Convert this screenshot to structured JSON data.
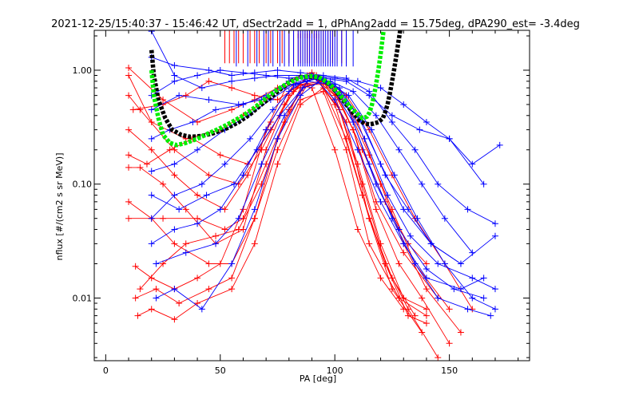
{
  "chart_data": {
    "type": "line",
    "title": "2021-12-25/15:40:37 - 15:46:42 UT, dSectr2add = 1, dPhAng2add = 15.75deg, dPA290_est= -3.4deg",
    "xlabel": "PA [deg]",
    "ylabel": "nflux [#/(cm2 s sr MeV)]",
    "xlim": [
      -5,
      185
    ],
    "ylim_log10": [
      -2.55,
      0.35
    ],
    "y_scale": "log",
    "x_ticks": [
      0,
      50,
      100,
      150
    ],
    "x_tick_labels": [
      "0",
      "50",
      "100",
      "150"
    ],
    "y_ticks": [
      0.01,
      0.1,
      1.0
    ],
    "y_tick_labels": [
      "0.01",
      "0.10",
      "1.00"
    ],
    "grid": false,
    "colors": {
      "red": "#ff0000",
      "blue": "#0000ff",
      "green": "#00ee00",
      "black": "#000000"
    },
    "red_markers_x": [
      52,
      54,
      56,
      58,
      60,
      63,
      65,
      67,
      70,
      72,
      75,
      77,
      80,
      82,
      84,
      85,
      86,
      87,
      88,
      89,
      90,
      91,
      92,
      93,
      94,
      95,
      97,
      99,
      101,
      103,
      105
    ],
    "blue_markers_x": [
      57,
      62,
      66,
      69,
      71,
      73,
      76,
      78,
      80,
      82,
      84,
      85,
      86,
      87,
      88,
      89,
      90,
      91,
      92,
      93,
      94,
      95,
      96,
      97,
      98,
      99,
      100,
      101,
      103,
      105,
      108
    ],
    "series": [
      {
        "color": "red",
        "x": [
          10,
          25,
          40,
          55,
          65,
          75,
          85,
          95,
          105,
          115,
          125,
          135,
          148,
          160
        ],
        "y": [
          1.05,
          0.55,
          0.35,
          0.45,
          0.55,
          0.7,
          0.9,
          0.85,
          0.6,
          0.3,
          0.12,
          0.05,
          0.02,
          0.008
        ]
      },
      {
        "color": "red",
        "x": [
          10,
          20,
          35,
          50,
          60,
          70,
          80,
          90,
          100,
          110,
          120,
          130,
          140,
          155
        ],
        "y": [
          0.9,
          0.35,
          0.25,
          0.3,
          0.4,
          0.55,
          0.8,
          0.95,
          0.7,
          0.35,
          0.1,
          0.03,
          0.012,
          0.005
        ]
      },
      {
        "color": "red",
        "x": [
          10,
          15,
          30,
          45,
          58,
          68,
          78,
          88,
          98,
          108,
          118,
          128,
          138,
          150
        ],
        "y": [
          0.6,
          0.45,
          0.2,
          0.12,
          0.1,
          0.2,
          0.5,
          0.9,
          0.75,
          0.3,
          0.06,
          0.02,
          0.01,
          0.004
        ]
      },
      {
        "color": "red",
        "x": [
          10,
          20,
          30,
          40,
          52,
          62,
          72,
          82,
          92,
          102,
          112,
          122,
          132,
          145
        ],
        "y": [
          0.3,
          0.2,
          0.12,
          0.08,
          0.06,
          0.12,
          0.35,
          0.75,
          0.85,
          0.45,
          0.1,
          0.02,
          0.008,
          0.003
        ]
      },
      {
        "color": "red",
        "x": [
          10,
          15,
          25,
          35,
          48,
          60,
          70,
          80,
          90,
          100,
          112,
          122,
          132,
          140
        ],
        "y": [
          0.14,
          0.14,
          0.1,
          0.06,
          0.03,
          0.04,
          0.2,
          0.6,
          0.95,
          0.5,
          0.08,
          0.02,
          0.007,
          0.006
        ]
      },
      {
        "color": "red",
        "x": [
          10,
          20,
          30,
          45,
          55,
          65,
          75,
          85,
          95,
          105,
          115,
          125,
          135
        ],
        "y": [
          0.07,
          0.05,
          0.03,
          0.02,
          0.02,
          0.05,
          0.25,
          0.7,
          0.8,
          0.35,
          0.05,
          0.015,
          0.007
        ]
      },
      {
        "color": "red",
        "x": [
          10,
          25,
          40,
          52,
          60,
          70,
          80,
          90,
          100,
          110,
          120,
          130,
          140
        ],
        "y": [
          0.05,
          0.05,
          0.05,
          0.04,
          0.05,
          0.15,
          0.45,
          0.9,
          0.6,
          0.15,
          0.03,
          0.01,
          0.008
        ]
      },
      {
        "color": "red",
        "x": [
          13,
          20,
          30,
          40,
          50,
          60,
          70,
          80,
          90,
          100,
          110,
          120,
          130
        ],
        "y": [
          0.019,
          0.015,
          0.012,
          0.015,
          0.02,
          0.06,
          0.3,
          0.8,
          0.7,
          0.2,
          0.04,
          0.015,
          0.008
        ]
      },
      {
        "color": "red",
        "x": [
          13,
          22,
          32,
          45,
          55,
          65,
          75,
          85,
          95,
          105,
          115,
          128,
          140
        ],
        "y": [
          0.01,
          0.012,
          0.009,
          0.012,
          0.015,
          0.05,
          0.2,
          0.55,
          0.65,
          0.2,
          0.03,
          0.01,
          0.007
        ]
      },
      {
        "color": "red",
        "x": [
          14,
          20,
          30,
          40,
          55,
          65,
          75,
          85,
          95,
          105,
          115,
          125,
          138
        ],
        "y": [
          0.007,
          0.008,
          0.0065,
          0.009,
          0.012,
          0.03,
          0.15,
          0.5,
          0.7,
          0.25,
          0.05,
          0.012,
          0.005
        ]
      },
      {
        "color": "red",
        "x": [
          15,
          25,
          35,
          48,
          58,
          68,
          78,
          88,
          98,
          108,
          118,
          130,
          145
        ],
        "y": [
          0.012,
          0.02,
          0.03,
          0.035,
          0.04,
          0.1,
          0.35,
          0.75,
          0.75,
          0.3,
          0.07,
          0.025,
          0.01
        ]
      },
      {
        "color": "red",
        "x": [
          10,
          18,
          28,
          38,
          50,
          62,
          72,
          82,
          92,
          102,
          112,
          122,
          132,
          140
        ],
        "y": [
          0.18,
          0.15,
          0.2,
          0.25,
          0.18,
          0.15,
          0.3,
          0.65,
          0.9,
          0.55,
          0.2,
          0.07,
          0.03,
          0.02
        ]
      },
      {
        "color": "red",
        "x": [
          12,
          25,
          35,
          45,
          55,
          65,
          75,
          85,
          95,
          105,
          115,
          125,
          135,
          150
        ],
        "y": [
          0.45,
          0.5,
          0.6,
          0.8,
          0.7,
          0.6,
          0.55,
          0.75,
          0.8,
          0.5,
          0.18,
          0.06,
          0.02,
          0.008
        ]
      },
      {
        "color": "blue",
        "x": [
          20,
          30,
          42,
          55,
          65,
          75,
          85,
          95,
          105,
          115,
          125,
          137,
          150,
          165
        ],
        "y": [
          2.2,
          0.9,
          0.7,
          0.8,
          0.85,
          0.9,
          0.9,
          0.85,
          0.8,
          0.6,
          0.4,
          0.3,
          0.25,
          0.1
        ]
      },
      {
        "color": "blue",
        "x": [
          20,
          30,
          45,
          55,
          65,
          75,
          85,
          95,
          105,
          115,
          125,
          135,
          145,
          158,
          170
        ],
        "y": [
          1.3,
          1.1,
          1.0,
          0.9,
          0.95,
          1.0,
          0.95,
          0.9,
          0.85,
          0.65,
          0.35,
          0.2,
          0.1,
          0.06,
          0.045
        ]
      },
      {
        "color": "blue",
        "x": [
          20,
          32,
          45,
          58,
          68,
          78,
          88,
          98,
          108,
          118,
          128,
          138,
          148,
          160
        ],
        "y": [
          0.45,
          0.6,
          0.55,
          0.5,
          0.55,
          0.7,
          0.85,
          0.8,
          0.65,
          0.4,
          0.2,
          0.1,
          0.05,
          0.025
        ]
      },
      {
        "color": "blue",
        "x": [
          20,
          30,
          40,
          52,
          62,
          72,
          82,
          92,
          102,
          112,
          122,
          132,
          142,
          155,
          170
        ],
        "y": [
          0.13,
          0.15,
          0.2,
          0.3,
          0.4,
          0.55,
          0.75,
          0.85,
          0.7,
          0.35,
          0.12,
          0.06,
          0.03,
          0.02,
          0.035
        ]
      },
      {
        "color": "blue",
        "x": [
          20,
          30,
          42,
          52,
          63,
          73,
          83,
          93,
          103,
          113,
          123,
          133,
          145,
          160,
          170
        ],
        "y": [
          0.05,
          0.08,
          0.1,
          0.15,
          0.25,
          0.45,
          0.75,
          0.85,
          0.6,
          0.25,
          0.08,
          0.035,
          0.02,
          0.015,
          0.012
        ]
      },
      {
        "color": "blue",
        "x": [
          20,
          30,
          40,
          50,
          60,
          70,
          80,
          90,
          100,
          110,
          120,
          130,
          140,
          155,
          165
        ],
        "y": [
          0.03,
          0.04,
          0.045,
          0.06,
          0.12,
          0.3,
          0.65,
          0.9,
          0.55,
          0.2,
          0.07,
          0.03,
          0.015,
          0.012,
          0.015
        ]
      },
      {
        "color": "blue",
        "x": [
          22,
          30,
          42,
          55,
          65,
          75,
          85,
          95,
          105,
          115,
          125,
          135,
          145,
          158,
          168
        ],
        "y": [
          0.01,
          0.012,
          0.008,
          0.02,
          0.06,
          0.25,
          0.6,
          0.85,
          0.5,
          0.15,
          0.05,
          0.02,
          0.01,
          0.008,
          0.007
        ]
      },
      {
        "color": "blue",
        "x": [
          22,
          35,
          48,
          58,
          68,
          78,
          88,
          98,
          108,
          118,
          128,
          140,
          152,
          165
        ],
        "y": [
          0.02,
          0.025,
          0.03,
          0.05,
          0.15,
          0.4,
          0.8,
          0.75,
          0.35,
          0.1,
          0.04,
          0.018,
          0.012,
          0.01
        ]
      },
      {
        "color": "blue",
        "x": [
          20,
          28,
          38,
          48,
          60,
          70,
          80,
          90,
          100,
          110,
          120,
          130,
          142,
          155
        ],
        "y": [
          0.25,
          0.3,
          0.35,
          0.45,
          0.5,
          0.6,
          0.8,
          0.9,
          0.75,
          0.4,
          0.15,
          0.06,
          0.03,
          0.02
        ]
      },
      {
        "color": "blue",
        "x": [
          20,
          32,
          44,
          56,
          66,
          76,
          86,
          96,
          106,
          116,
          126,
          136,
          148,
          160,
          170
        ],
        "y": [
          0.08,
          0.06,
          0.08,
          0.1,
          0.2,
          0.4,
          0.7,
          0.8,
          0.6,
          0.3,
          0.12,
          0.05,
          0.02,
          0.01,
          0.008
        ]
      },
      {
        "color": "blue",
        "x": [
          20,
          30,
          40,
          50,
          60,
          70,
          80,
          90,
          100,
          110,
          120,
          130,
          140,
          150,
          160,
          172
        ],
        "y": [
          0.6,
          0.8,
          0.9,
          1.0,
          0.95,
          0.9,
          0.85,
          0.9,
          0.85,
          0.8,
          0.7,
          0.5,
          0.35,
          0.25,
          0.15,
          0.22
        ]
      }
    ],
    "fits": [
      {
        "color": "black",
        "style": "dashed",
        "x": [
          20,
          21,
          23,
          26,
          29,
          33,
          37,
          42,
          47,
          53,
          58,
          63,
          68,
          73,
          77,
          81,
          85,
          89,
          93,
          96,
          99,
          102,
          105,
          108,
          111,
          113,
          115,
          117,
          119,
          121,
          122,
          123,
          124,
          125,
          126,
          127,
          128,
          129,
          130,
          131
        ],
        "y": [
          1.5,
          0.9,
          0.55,
          0.38,
          0.3,
          0.27,
          0.26,
          0.265,
          0.28,
          0.31,
          0.35,
          0.41,
          0.5,
          0.6,
          0.7,
          0.8,
          0.87,
          0.88,
          0.86,
          0.8,
          0.7,
          0.6,
          0.5,
          0.42,
          0.36,
          0.34,
          0.335,
          0.34,
          0.35,
          0.38,
          0.43,
          0.5,
          0.62,
          0.8,
          1.05,
          1.4,
          1.9,
          2.6,
          3.6,
          5.5
        ]
      },
      {
        "color": "green",
        "style": "dashed",
        "x": [
          20,
          21,
          23,
          25,
          28,
          31,
          35,
          40,
          45,
          50,
          55,
          60,
          65,
          70,
          75,
          80,
          85,
          89,
          93,
          97,
          101,
          104,
          107,
          110,
          112,
          114,
          115,
          116,
          117,
          118,
          119,
          120,
          121,
          122,
          123,
          124
        ],
        "y": [
          1.0,
          0.6,
          0.38,
          0.27,
          0.23,
          0.22,
          0.23,
          0.25,
          0.28,
          0.31,
          0.35,
          0.4,
          0.47,
          0.57,
          0.68,
          0.78,
          0.86,
          0.89,
          0.87,
          0.78,
          0.65,
          0.55,
          0.47,
          0.41,
          0.38,
          0.39,
          0.42,
          0.48,
          0.58,
          0.75,
          1.0,
          1.4,
          2.0,
          3.0,
          4.5,
          6.5
        ]
      }
    ]
  }
}
